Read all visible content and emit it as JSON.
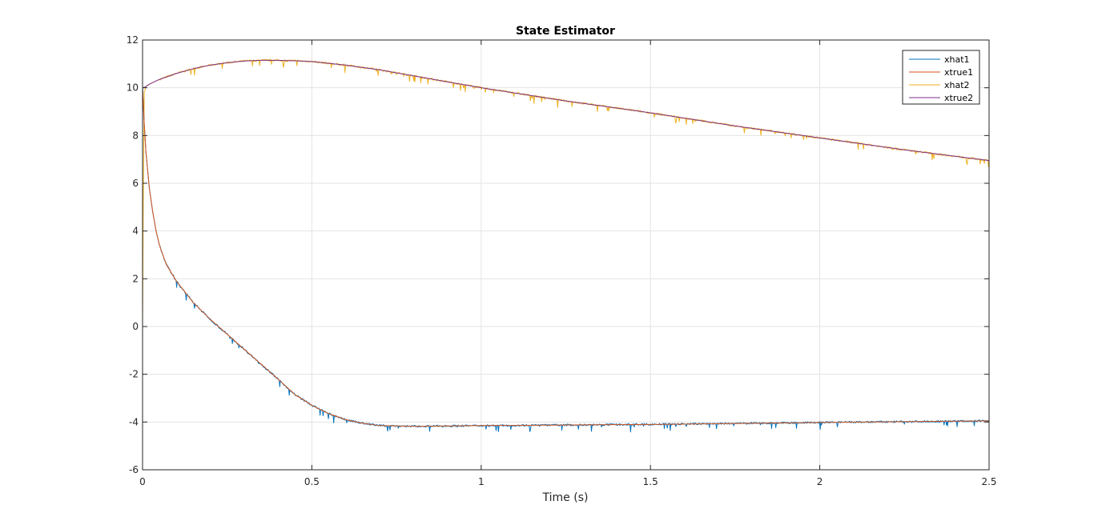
{
  "chart_data": {
    "type": "line",
    "title": "State Estimator",
    "xlabel": "Time (s)",
    "ylabel": "",
    "xlim": [
      0,
      2.5
    ],
    "ylim": [
      -6,
      12
    ],
    "xticks": [
      0,
      0.5,
      1,
      1.5,
      2,
      2.5
    ],
    "xtick_labels": [
      "0",
      "0.5",
      "1",
      "1.5",
      "2",
      "2.5"
    ],
    "yticks": [
      -6,
      -4,
      -2,
      0,
      2,
      4,
      6,
      8,
      10,
      12
    ],
    "ytick_labels": [
      "-6",
      "-4",
      "-2",
      "0",
      "2",
      "4",
      "6",
      "8",
      "10",
      "12"
    ],
    "grid": true,
    "legend_location": "top-right",
    "series": [
      {
        "name": "xhat1",
        "color": "#0072BD",
        "noisy": true,
        "x": [
          0,
          0.005,
          0.01,
          0.02,
          0.03,
          0.04,
          0.05,
          0.07,
          0.1,
          0.15,
          0.2,
          0.3,
          0.4,
          0.45,
          0.5,
          0.55,
          0.6,
          0.65,
          0.7,
          0.8,
          1.0,
          1.5,
          2.0,
          2.5
        ],
        "y": [
          10,
          8.5,
          7.3,
          5.8,
          4.8,
          4.0,
          3.4,
          2.6,
          1.9,
          1.0,
          0.3,
          -0.95,
          -2.2,
          -2.85,
          -3.3,
          -3.65,
          -3.9,
          -4.05,
          -4.15,
          -4.18,
          -4.15,
          -4.1,
          -4.02,
          -3.95
        ]
      },
      {
        "name": "xtrue1",
        "color": "#D95319",
        "noisy": false,
        "x": [
          0,
          0.005,
          0.01,
          0.02,
          0.03,
          0.04,
          0.05,
          0.07,
          0.1,
          0.15,
          0.2,
          0.3,
          0.4,
          0.45,
          0.5,
          0.55,
          0.6,
          0.65,
          0.7,
          0.8,
          1.0,
          1.5,
          2.0,
          2.5
        ],
        "y": [
          10,
          8.5,
          7.3,
          5.8,
          4.8,
          4.0,
          3.4,
          2.6,
          1.9,
          1.0,
          0.3,
          -0.95,
          -2.2,
          -2.85,
          -3.3,
          -3.65,
          -3.9,
          -4.05,
          -4.15,
          -4.18,
          -4.15,
          -4.1,
          -4.02,
          -3.95
        ]
      },
      {
        "name": "xhat2",
        "color": "#EDB120",
        "noisy": true,
        "x": [
          0,
          0.002,
          0.005,
          0.01,
          0.02,
          0.05,
          0.1,
          0.15,
          0.2,
          0.25,
          0.3,
          0.35,
          0.4,
          0.45,
          0.5,
          0.6,
          0.7,
          0.8,
          0.9,
          1.0,
          1.25,
          1.5,
          1.75,
          2.0,
          2.25,
          2.5
        ],
        "y": [
          0,
          5.0,
          9.8,
          10.05,
          10.15,
          10.35,
          10.6,
          10.8,
          10.95,
          11.05,
          11.12,
          11.15,
          11.15,
          11.13,
          11.1,
          10.95,
          10.75,
          10.5,
          10.25,
          10.0,
          9.45,
          8.95,
          8.4,
          7.9,
          7.4,
          6.95
        ]
      },
      {
        "name": "xtrue2",
        "color": "#7E2F8E",
        "noisy": false,
        "x": [
          0,
          0.01,
          0.02,
          0.05,
          0.1,
          0.15,
          0.2,
          0.25,
          0.3,
          0.35,
          0.4,
          0.45,
          0.5,
          0.6,
          0.7,
          0.8,
          0.9,
          1.0,
          1.25,
          1.5,
          1.75,
          2.0,
          2.25,
          2.5
        ],
        "y": [
          10,
          10.05,
          10.15,
          10.35,
          10.6,
          10.8,
          10.95,
          11.05,
          11.12,
          11.15,
          11.15,
          11.13,
          11.1,
          10.95,
          10.75,
          10.5,
          10.25,
          10.0,
          9.45,
          8.95,
          8.4,
          7.9,
          7.4,
          6.95
        ]
      }
    ]
  }
}
